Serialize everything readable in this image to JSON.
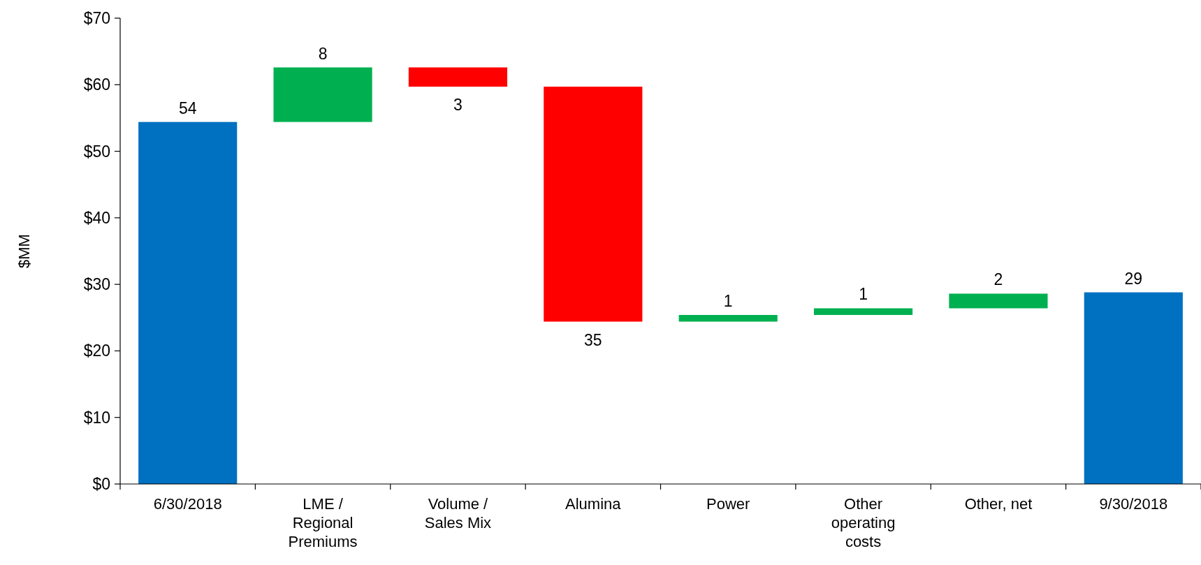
{
  "chart_data": {
    "type": "bar",
    "ylabel": "$MM",
    "categories": [
      "6/30/2018",
      "LME / Regional Premiums",
      "Volume / Sales Mix",
      "Alumina",
      "Power",
      "Other operating costs",
      "Other, net",
      "9/30/2018"
    ],
    "values": [
      54.4,
      8.2,
      -2.9,
      -35.3,
      1.0,
      1.0,
      2.2,
      28.8
    ],
    "base": [
      0,
      54.4,
      62.6,
      59.7,
      24.4,
      25.4,
      26.4,
      0
    ],
    "colors": [
      "#0070c0",
      "#00b050",
      "#ff0000",
      "#ff0000",
      "#00b050",
      "#00b050",
      "#00b050",
      "#0070c0"
    ],
    "value_labels": [
      "54",
      "8",
      "3",
      "35",
      "1",
      "1",
      "2",
      "29"
    ],
    "ylim": [
      0,
      70
    ],
    "yticks": [
      {
        "value": 0,
        "label": "$0"
      },
      {
        "value": 10,
        "label": "$10"
      },
      {
        "value": 20,
        "label": "$20"
      },
      {
        "value": 30,
        "label": "$30"
      },
      {
        "value": 40,
        "label": "$40"
      },
      {
        "value": 50,
        "label": "$50"
      },
      {
        "value": 60,
        "label": "$60"
      },
      {
        "value": 70,
        "label": "$70"
      }
    ],
    "grid": false
  }
}
